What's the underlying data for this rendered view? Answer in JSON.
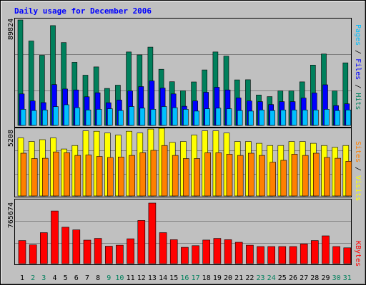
{
  "chart_data": [
    {
      "type": "bar",
      "title": "Daily usage for December 2006",
      "ylabel_max": "89824",
      "categories": [
        "1",
        "2",
        "3",
        "4",
        "5",
        "6",
        "7",
        "8",
        "9",
        "10",
        "11",
        "12",
        "13",
        "14",
        "15",
        "16",
        "17",
        "18",
        "19",
        "20",
        "21",
        "22",
        "23",
        "24",
        "25",
        "26",
        "27",
        "28",
        "29",
        "30",
        "31"
      ],
      "weekend_days": [
        "2",
        "3",
        "9",
        "10",
        "16",
        "17",
        "23",
        "24",
        "30",
        "31"
      ],
      "ylim": [
        0,
        89824
      ],
      "grid": true,
      "series": [
        {
          "name": "Hits",
          "color": "#00805c",
          "values": [
            89824,
            71900,
            59800,
            85000,
            70600,
            53800,
            42800,
            49800,
            31500,
            34300,
            62600,
            60100,
            66700,
            47800,
            37200,
            29500,
            37000,
            47300,
            62600,
            59000,
            38800,
            38900,
            25900,
            24500,
            29400,
            29400,
            37100,
            51400,
            60800,
            29300,
            53300
          ]
        },
        {
          "name": "Pages",
          "color": "#0000ff",
          "values": [
            26800,
            20800,
            19400,
            34800,
            31000,
            30200,
            24400,
            27800,
            19300,
            21600,
            29300,
            33100,
            37900,
            31800,
            26800,
            16300,
            20800,
            28200,
            32500,
            30200,
            23400,
            20800,
            20300,
            17800,
            20300,
            20300,
            23300,
            27600,
            34600,
            16900,
            18400
          ]
        },
        {
          "name": "Files",
          "color": "#00bfff",
          "values": [
            13700,
            12700,
            13200,
            16000,
            17600,
            15100,
            13200,
            13700,
            14200,
            12700,
            16100,
            14700,
            13700,
            16100,
            15100,
            13700,
            12200,
            14200,
            14700,
            14200,
            12700,
            12200,
            13200,
            12700,
            13200,
            13200,
            13200,
            13200,
            13700,
            12700,
            13200
          ]
        }
      ]
    },
    {
      "type": "bar",
      "ylabel_max": "5208",
      "categories": [
        "1",
        "2",
        "3",
        "4",
        "5",
        "6",
        "7",
        "8",
        "9",
        "10",
        "11",
        "12",
        "13",
        "14",
        "15",
        "16",
        "17",
        "18",
        "19",
        "20",
        "21",
        "22",
        "23",
        "24",
        "25",
        "26",
        "27",
        "28",
        "29",
        "30",
        "31"
      ],
      "ylim": [
        0,
        5208
      ],
      "grid": true,
      "series": [
        {
          "name": "Visits",
          "color": "#ffff00",
          "values": [
            4470,
            4190,
            4330,
            4470,
            3610,
            3880,
            5010,
            4980,
            4840,
            4680,
            4980,
            4840,
            5150,
            5208,
            4120,
            4190,
            4680,
            5010,
            5010,
            4840,
            4190,
            4190,
            4050,
            3880,
            3880,
            4190,
            4190,
            4050,
            3880,
            3740,
            3880
          ]
        },
        {
          "name": "Sites",
          "color": "#ff8000",
          "values": [
            3290,
            2880,
            2900,
            3390,
            3330,
            3120,
            3150,
            3040,
            2960,
            3000,
            3120,
            3330,
            3510,
            3880,
            3120,
            2880,
            2880,
            3330,
            3330,
            3210,
            3120,
            3290,
            3120,
            2600,
            2740,
            3210,
            3120,
            3290,
            2960,
            2900,
            2670
          ]
        }
      ]
    },
    {
      "type": "bar",
      "ylabel_max": "765674",
      "categories": [
        "1",
        "2",
        "3",
        "4",
        "5",
        "6",
        "7",
        "8",
        "9",
        "10",
        "11",
        "12",
        "13",
        "14",
        "15",
        "16",
        "17",
        "18",
        "19",
        "20",
        "21",
        "22",
        "23",
        "24",
        "25",
        "26",
        "27",
        "28",
        "29",
        "30",
        "31"
      ],
      "ylim": [
        0,
        765674
      ],
      "grid": true,
      "series": [
        {
          "name": "KBytes",
          "color": "#ff0000",
          "values": [
            292000,
            238000,
            392000,
            666000,
            460000,
            427000,
            297000,
            319000,
            221000,
            233000,
            314000,
            546000,
            765674,
            392000,
            303000,
            206000,
            227000,
            298000,
            319000,
            303000,
            270000,
            233000,
            216000,
            216000,
            216000,
            216000,
            249000,
            292000,
            351000,
            216000,
            200000
          ]
        }
      ]
    }
  ]
}
